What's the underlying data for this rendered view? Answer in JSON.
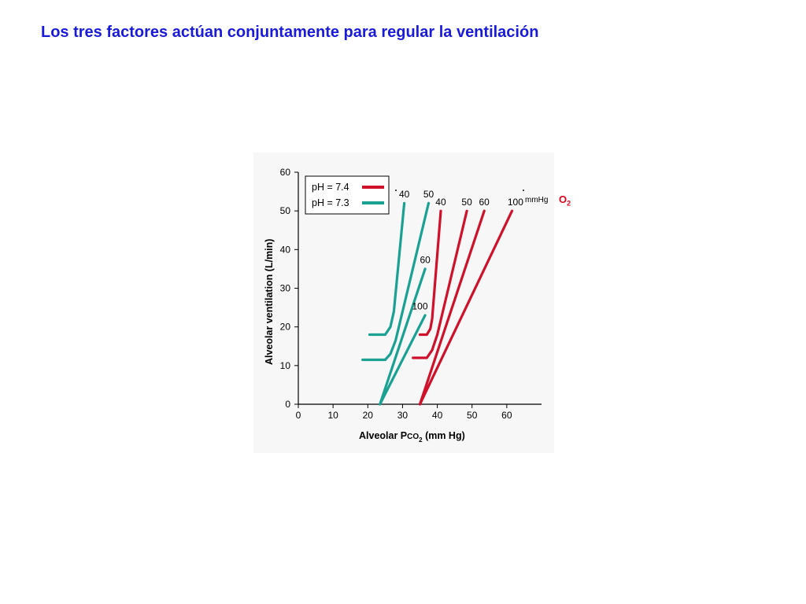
{
  "slide": {
    "title": "Los tres factores actúan conjuntamente para regular la ventilación",
    "o2_label_main": "O",
    "o2_label_sub": "2",
    "curve_label_unit": "mmHg"
  },
  "colors": {
    "title": "#1a1adb",
    "ph74": "#d0112b",
    "ph73": "#1aa193",
    "o2_label": "#e0001b"
  },
  "chart_data": {
    "type": "line",
    "xlabel_prefix": "Alveolar P",
    "xlabel_sub_main": "CO",
    "xlabel_sub_sub": "2",
    "xlabel_suffix": " (mm Hg)",
    "ylabel": "Alveolar ventilation (L/min)",
    "xlim": [
      0,
      70
    ],
    "ylim": [
      0,
      60
    ],
    "x_ticks": [
      0,
      10,
      20,
      30,
      40,
      50,
      60
    ],
    "y_ticks": [
      0,
      10,
      20,
      30,
      40,
      50,
      60
    ],
    "grid": false,
    "legend_position": "top-left",
    "legend": [
      {
        "label": "pH = 7.4",
        "color": "#d0112b"
      },
      {
        "label": "pH = 7.3",
        "color": "#1aa193"
      }
    ],
    "series": [
      {
        "group": "pH = 7.3",
        "curve_label": "40",
        "color": "#1aa193",
        "points": [
          [
            20.5,
            18
          ],
          [
            25,
            18
          ],
          [
            26.5,
            20
          ],
          [
            27.5,
            24
          ],
          [
            30.5,
            52
          ]
        ]
      },
      {
        "group": "pH = 7.3",
        "curve_label": "50",
        "color": "#1aa193",
        "points": [
          [
            18.5,
            11.5
          ],
          [
            25,
            11.5
          ],
          [
            26.5,
            13
          ],
          [
            28,
            16.5
          ],
          [
            37.5,
            52
          ]
        ]
      },
      {
        "group": "pH = 7.3",
        "curve_label": "60",
        "color": "#1aa193",
        "points": [
          [
            23.5,
            0
          ],
          [
            36.5,
            35
          ]
        ]
      },
      {
        "group": "pH = 7.3",
        "curve_label": "100",
        "color": "#1aa193",
        "points": [
          [
            23.5,
            0
          ],
          [
            36.5,
            23
          ]
        ]
      },
      {
        "group": "pH = 7.4",
        "curve_label": "40",
        "color": "#d0112b",
        "points": [
          [
            35,
            18
          ],
          [
            37,
            18
          ],
          [
            38,
            19.5
          ],
          [
            38.5,
            22
          ],
          [
            41,
            50
          ]
        ]
      },
      {
        "group": "pH = 7.4",
        "curve_label": "50",
        "color": "#d0112b",
        "points": [
          [
            33,
            12
          ],
          [
            37,
            12
          ],
          [
            38.5,
            14
          ],
          [
            40,
            18
          ],
          [
            48.5,
            50
          ]
        ]
      },
      {
        "group": "pH = 7.4",
        "curve_label": "60",
        "color": "#d0112b",
        "points": [
          [
            35,
            0
          ],
          [
            53.5,
            50
          ]
        ]
      },
      {
        "group": "pH = 7.4",
        "curve_label": "100",
        "color": "#d0112b",
        "points": [
          [
            35,
            0
          ],
          [
            61.5,
            50
          ]
        ]
      }
    ],
    "curve_labels": [
      {
        "text": "40",
        "x": 30.5,
        "y": 53.5
      },
      {
        "text": "50",
        "x": 37.5,
        "y": 53.5
      },
      {
        "text": "40",
        "x": 41,
        "y": 51.5
      },
      {
        "text": "50",
        "x": 48.5,
        "y": 51.5
      },
      {
        "text": "60",
        "x": 53.5,
        "y": 51.5
      },
      {
        "text": "100",
        "x": 62.5,
        "y": 51.5
      },
      {
        "text": "60",
        "x": 36.5,
        "y": 36.5
      },
      {
        "text": "100",
        "x": 35,
        "y": 24.5
      }
    ]
  }
}
